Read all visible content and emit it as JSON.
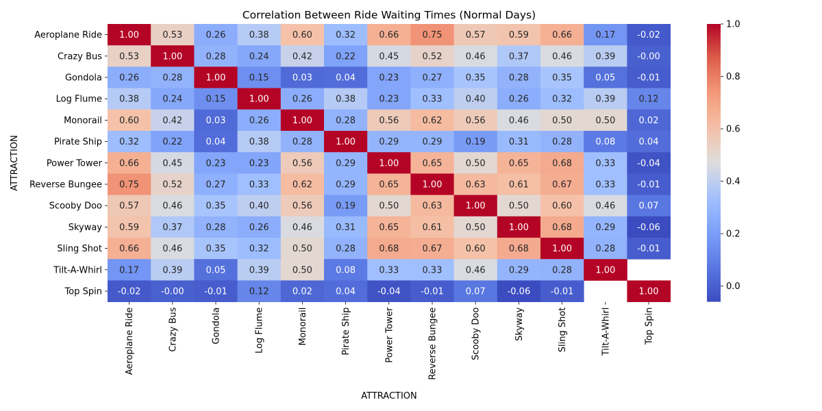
{
  "chart_data": {
    "type": "heatmap",
    "title": "Correlation Between Ride Waiting Times (Normal Days)",
    "xlabel": "ATTRACTION",
    "ylabel": "ATTRACTION",
    "categories": [
      "Aeroplane Ride",
      "Crazy Bus",
      "Gondola",
      "Log Flume",
      "Monorail",
      "Pirate Ship",
      "Power Tower",
      "Reverse Bungee",
      "Scooby Doo",
      "Skyway",
      "Sling Shot",
      "Tilt-A-Whirl",
      "Top Spin"
    ],
    "values": [
      [
        1.0,
        0.53,
        0.26,
        0.38,
        0.6,
        0.32,
        0.66,
        0.75,
        0.57,
        0.59,
        0.66,
        0.17,
        -0.02
      ],
      [
        0.53,
        1.0,
        0.28,
        0.24,
        0.42,
        0.22,
        0.45,
        0.52,
        0.46,
        0.37,
        0.46,
        0.39,
        -0.0
      ],
      [
        0.26,
        0.28,
        1.0,
        0.15,
        0.03,
        0.04,
        0.23,
        0.27,
        0.35,
        0.28,
        0.35,
        0.05,
        -0.01
      ],
      [
        0.38,
        0.24,
        0.15,
        1.0,
        0.26,
        0.38,
        0.23,
        0.33,
        0.4,
        0.26,
        0.32,
        0.39,
        0.12
      ],
      [
        0.6,
        0.42,
        0.03,
        0.26,
        1.0,
        0.28,
        0.56,
        0.62,
        0.56,
        0.46,
        0.5,
        0.5,
        0.02
      ],
      [
        0.32,
        0.22,
        0.04,
        0.38,
        0.28,
        1.0,
        0.29,
        0.29,
        0.19,
        0.31,
        0.28,
        0.08,
        0.04
      ],
      [
        0.66,
        0.45,
        0.23,
        0.23,
        0.56,
        0.29,
        1.0,
        0.65,
        0.5,
        0.65,
        0.68,
        0.33,
        -0.04
      ],
      [
        0.75,
        0.52,
        0.27,
        0.33,
        0.62,
        0.29,
        0.65,
        1.0,
        0.63,
        0.61,
        0.67,
        0.33,
        -0.01
      ],
      [
        0.57,
        0.46,
        0.35,
        0.4,
        0.56,
        0.19,
        0.5,
        0.63,
        1.0,
        0.5,
        0.6,
        0.46,
        0.07
      ],
      [
        0.59,
        0.37,
        0.28,
        0.26,
        0.46,
        0.31,
        0.65,
        0.61,
        0.5,
        1.0,
        0.68,
        0.29,
        -0.06
      ],
      [
        0.66,
        0.46,
        0.35,
        0.32,
        0.5,
        0.28,
        0.68,
        0.67,
        0.6,
        0.68,
        1.0,
        0.28,
        -0.01
      ],
      [
        0.17,
        0.39,
        0.05,
        0.39,
        0.5,
        0.08,
        0.33,
        0.33,
        0.46,
        0.29,
        0.28,
        1.0,
        null
      ],
      [
        -0.02,
        -0.0,
        -0.01,
        0.12,
        0.02,
        0.04,
        -0.04,
        -0.01,
        0.07,
        -0.06,
        -0.01,
        null,
        1.0
      ]
    ],
    "colormap": "coolwarm",
    "vmin": -0.06,
    "vmax": 1.0,
    "colorbar": {
      "ticks": [
        0.0,
        0.2,
        0.4,
        0.6,
        0.8,
        1.0
      ],
      "tick_labels": [
        "0.0",
        "0.2",
        "0.4",
        "0.6",
        "0.8",
        "1.0"
      ]
    },
    "value_format": "2 decimals",
    "legend": "colorbar-right"
  }
}
